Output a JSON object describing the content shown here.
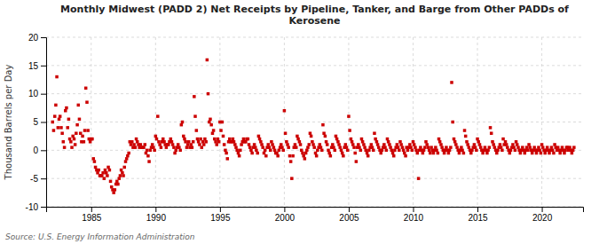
{
  "chart_data": {
    "type": "scatter",
    "title": "Monthly Midwest (PADD 2) Net Receipts by Pipeline, Tanker, and Barge from Other PADDs of\nKerosene",
    "ylabel": "Thousand Barrels per Day",
    "source": "Source: U.S. Energy Information Administration",
    "color": "#cc0000",
    "marker": "square",
    "grid": true,
    "xlim": [
      1981.5,
      2023.2
    ],
    "xticks": [
      1985,
      1990,
      1995,
      2000,
      2005,
      2010,
      2015,
      2020
    ],
    "ylim": [
      -10,
      20
    ],
    "yticks": [
      -10,
      -5,
      0,
      5,
      10,
      15,
      20
    ],
    "x": [
      1982.0,
      1982.08,
      1982.17,
      1982.25,
      1982.33,
      1982.42,
      1982.5,
      1982.58,
      1982.67,
      1982.75,
      1982.83,
      1982.92,
      1983.0,
      1983.08,
      1983.17,
      1983.25,
      1983.33,
      1983.42,
      1983.5,
      1983.58,
      1983.67,
      1983.75,
      1983.83,
      1983.92,
      1984.0,
      1984.08,
      1984.17,
      1984.25,
      1984.33,
      1984.42,
      1984.5,
      1984.58,
      1984.67,
      1984.75,
      1984.83,
      1984.92,
      1985.0,
      1985.08,
      1985.17,
      1985.25,
      1985.33,
      1985.42,
      1985.5,
      1985.58,
      1985.67,
      1985.75,
      1985.83,
      1985.92,
      1986.0,
      1986.08,
      1986.17,
      1986.25,
      1986.33,
      1986.42,
      1986.5,
      1986.58,
      1986.67,
      1986.75,
      1986.83,
      1986.92,
      1987.0,
      1987.08,
      1987.17,
      1987.25,
      1987.33,
      1987.42,
      1987.5,
      1987.58,
      1987.67,
      1987.75,
      1987.83,
      1987.92,
      1988.0,
      1988.08,
      1988.17,
      1988.25,
      1988.33,
      1988.42,
      1988.5,
      1988.58,
      1988.67,
      1988.75,
      1988.83,
      1988.92,
      1989.0,
      1989.08,
      1989.17,
      1989.25,
      1989.33,
      1989.42,
      1989.5,
      1989.58,
      1989.67,
      1989.75,
      1989.83,
      1989.92,
      1990.0,
      1990.08,
      1990.17,
      1990.25,
      1990.33,
      1990.42,
      1990.5,
      1990.58,
      1990.67,
      1990.75,
      1990.83,
      1990.92,
      1991.0,
      1991.08,
      1991.17,
      1991.25,
      1991.33,
      1991.42,
      1991.5,
      1991.58,
      1991.67,
      1991.75,
      1991.83,
      1991.92,
      1992.0,
      1992.08,
      1992.17,
      1992.25,
      1992.33,
      1992.42,
      1992.5,
      1992.58,
      1992.67,
      1992.75,
      1992.83,
      1992.92,
      1993.0,
      1993.08,
      1993.17,
      1993.25,
      1993.33,
      1993.42,
      1993.5,
      1993.58,
      1993.67,
      1993.75,
      1993.83,
      1993.92,
      1994.0,
      1994.08,
      1994.17,
      1994.25,
      1994.33,
      1994.42,
      1994.5,
      1994.58,
      1994.67,
      1994.75,
      1994.83,
      1994.92,
      1995.0,
      1995.08,
      1995.17,
      1995.25,
      1995.33,
      1995.42,
      1995.5,
      1995.58,
      1995.67,
      1995.75,
      1995.83,
      1995.92,
      1996.0,
      1996.08,
      1996.17,
      1996.25,
      1996.33,
      1996.42,
      1996.5,
      1996.58,
      1996.67,
      1996.75,
      1996.83,
      1996.92,
      1997.0,
      1997.08,
      1997.17,
      1997.25,
      1997.33,
      1997.42,
      1997.5,
      1997.58,
      1997.67,
      1997.75,
      1997.83,
      1997.92,
      1998.0,
      1998.08,
      1998.17,
      1998.25,
      1998.33,
      1998.42,
      1998.5,
      1998.58,
      1998.67,
      1998.75,
      1998.83,
      1998.92,
      1999.0,
      1999.08,
      1999.17,
      1999.25,
      1999.33,
      1999.42,
      1999.5,
      1999.58,
      1999.67,
      1999.75,
      1999.83,
      1999.92,
      2000.0,
      2000.08,
      2000.17,
      2000.25,
      2000.33,
      2000.42,
      2000.5,
      2000.58,
      2000.67,
      2000.75,
      2000.83,
      2000.92,
      2001.0,
      2001.08,
      2001.17,
      2001.25,
      2001.33,
      2001.42,
      2001.5,
      2001.58,
      2001.67,
      2001.75,
      2001.83,
      2001.92,
      2002.0,
      2002.08,
      2002.17,
      2002.25,
      2002.33,
      2002.42,
      2002.5,
      2002.58,
      2002.67,
      2002.75,
      2002.83,
      2002.92,
      2003.0,
      2003.08,
      2003.17,
      2003.25,
      2003.33,
      2003.42,
      2003.5,
      2003.58,
      2003.67,
      2003.75,
      2003.83,
      2003.92,
      2004.0,
      2004.08,
      2004.17,
      2004.25,
      2004.33,
      2004.42,
      2004.5,
      2004.58,
      2004.67,
      2004.75,
      2004.83,
      2004.92,
      2005.0,
      2005.08,
      2005.17,
      2005.25,
      2005.33,
      2005.42,
      2005.5,
      2005.58,
      2005.67,
      2005.75,
      2005.83,
      2005.92,
      2006.0,
      2006.08,
      2006.17,
      2006.25,
      2006.33,
      2006.42,
      2006.5,
      2006.58,
      2006.67,
      2006.75,
      2006.83,
      2006.92,
      2007.0,
      2007.08,
      2007.17,
      2007.25,
      2007.33,
      2007.42,
      2007.5,
      2007.58,
      2007.67,
      2007.75,
      2007.83,
      2007.92,
      2008.0,
      2008.08,
      2008.17,
      2008.25,
      2008.33,
      2008.42,
      2008.5,
      2008.58,
      2008.67,
      2008.75,
      2008.83,
      2008.92,
      2009.0,
      2009.08,
      2009.17,
      2009.25,
      2009.33,
      2009.42,
      2009.5,
      2009.58,
      2009.67,
      2009.75,
      2009.83,
      2009.92,
      2010.0,
      2010.08,
      2010.17,
      2010.25,
      2010.33,
      2010.42,
      2010.5,
      2010.58,
      2010.67,
      2010.75,
      2010.83,
      2010.92,
      2011.0,
      2011.08,
      2011.17,
      2011.25,
      2011.33,
      2011.42,
      2011.5,
      2011.58,
      2011.67,
      2011.75,
      2011.83,
      2011.92,
      2012.0,
      2012.08,
      2012.17,
      2012.25,
      2012.33,
      2012.42,
      2012.5,
      2012.58,
      2012.67,
      2012.75,
      2012.83,
      2012.92,
      2013.0,
      2013.08,
      2013.17,
      2013.25,
      2013.33,
      2013.42,
      2013.5,
      2013.58,
      2013.67,
      2013.75,
      2013.83,
      2013.92,
      2014.0,
      2014.08,
      2014.17,
      2014.25,
      2014.33,
      2014.42,
      2014.5,
      2014.58,
      2014.67,
      2014.75,
      2014.83,
      2014.92,
      2015.0,
      2015.08,
      2015.17,
      2015.25,
      2015.33,
      2015.42,
      2015.5,
      2015.58,
      2015.67,
      2015.75,
      2015.83,
      2015.92,
      2016.0,
      2016.08,
      2016.17,
      2016.25,
      2016.33,
      2016.42,
      2016.5,
      2016.58,
      2016.67,
      2016.75,
      2016.83,
      2016.92,
      2017.0,
      2017.08,
      2017.17,
      2017.25,
      2017.33,
      2017.42,
      2017.5,
      2017.58,
      2017.67,
      2017.75,
      2017.83,
      2017.92,
      2018.0,
      2018.08,
      2018.17,
      2018.25,
      2018.33,
      2018.42,
      2018.5,
      2018.58,
      2018.67,
      2018.75,
      2018.83,
      2018.92,
      2019.0,
      2019.08,
      2019.17,
      2019.25,
      2019.33,
      2019.42,
      2019.5,
      2019.58,
      2019.67,
      2019.75,
      2019.83,
      2019.92,
      2020.0,
      2020.08,
      2020.17,
      2020.25,
      2020.33,
      2020.42,
      2020.5,
      2020.58,
      2020.67,
      2020.75,
      2020.83,
      2020.92,
      2021.0,
      2021.08,
      2021.17,
      2021.25,
      2021.33,
      2021.42,
      2021.5,
      2021.58,
      2021.67,
      2021.75,
      2021.83,
      2021.92,
      2022.0,
      2022.08,
      2022.17,
      2022.25,
      2022.33,
      2022.42,
      2022.5
    ],
    "values": [
      5.0,
      3.5,
      6.0,
      8.0,
      13.0,
      4.0,
      5.5,
      6.0,
      4.0,
      3.0,
      1.5,
      0.5,
      7.0,
      7.5,
      4.0,
      5.5,
      2.0,
      1.5,
      0.5,
      2.5,
      2.0,
      1.0,
      3.0,
      4.5,
      8.0,
      5.5,
      3.0,
      1.5,
      2.5,
      1.5,
      3.5,
      11.0,
      8.5,
      3.5,
      2.0,
      1.5,
      2.0,
      2.0,
      -1.5,
      -2.0,
      -3.0,
      -3.5,
      -4.0,
      -3.5,
      -4.5,
      -4.5,
      -4.5,
      -4.0,
      -5.0,
      -3.5,
      -4.0,
      -4.5,
      -3.0,
      -3.5,
      -5.5,
      -6.5,
      -7.0,
      -7.5,
      -7.0,
      -6.0,
      -5.5,
      -6.0,
      -5.0,
      -4.5,
      -3.5,
      -4.0,
      -4.5,
      -3.0,
      -2.0,
      -1.5,
      -1.0,
      -0.5,
      1.5,
      1.0,
      1.5,
      0.5,
      1.0,
      0.5,
      2.0,
      1.5,
      1.0,
      0.5,
      1.0,
      0.5,
      0.5,
      0.5,
      1.0,
      -0.5,
      0.0,
      -1.0,
      -2.0,
      0.0,
      0.5,
      1.0,
      0.5,
      0.0,
      2.5,
      2.0,
      6.0,
      1.5,
      1.0,
      0.5,
      1.5,
      2.0,
      1.5,
      1.0,
      0.5,
      1.0,
      1.0,
      1.5,
      2.0,
      1.5,
      1.0,
      0.5,
      -0.5,
      0.0,
      0.5,
      1.0,
      0.5,
      0.0,
      4.5,
      5.0,
      2.5,
      2.0,
      1.5,
      0.5,
      1.0,
      1.5,
      0.5,
      1.0,
      0.5,
      1.5,
      9.5,
      6.0,
      3.5,
      2.0,
      1.5,
      1.0,
      2.0,
      0.5,
      1.5,
      1.0,
      2.0,
      1.5,
      16.0,
      10.0,
      5.0,
      5.5,
      4.5,
      3.0,
      3.5,
      2.0,
      1.5,
      1.0,
      2.0,
      1.5,
      5.0,
      3.5,
      5.0,
      2.5,
      1.0,
      0.0,
      -0.5,
      -1.5,
      1.5,
      2.0,
      1.5,
      1.5,
      2.0,
      1.5,
      1.0,
      0.5,
      0.0,
      -0.5,
      -1.0,
      0.0,
      1.0,
      1.5,
      2.0,
      1.5,
      1.5,
      2.0,
      2.0,
      1.0,
      0.5,
      0.0,
      -0.5,
      0.5,
      1.0,
      0.5,
      0.0,
      -0.5,
      2.5,
      2.0,
      1.5,
      1.0,
      0.5,
      -0.5,
      0.0,
      -1.0,
      0.5,
      1.0,
      0.5,
      0.0,
      1.5,
      1.0,
      0.5,
      0.0,
      -0.5,
      -0.5,
      -1.0,
      0.0,
      0.5,
      1.0,
      0.5,
      0.0,
      7.0,
      3.0,
      1.5,
      1.0,
      0.5,
      -1.0,
      -2.0,
      -5.0,
      -1.0,
      0.5,
      1.0,
      0.5,
      2.5,
      2.0,
      1.5,
      1.0,
      0.0,
      -0.5,
      -1.0,
      -1.5,
      -0.5,
      0.0,
      0.5,
      1.0,
      3.0,
      2.5,
      1.5,
      1.0,
      0.5,
      -0.5,
      -1.0,
      0.0,
      0.5,
      1.0,
      0.5,
      0.0,
      4.5,
      3.0,
      2.5,
      1.5,
      1.0,
      0.0,
      -0.5,
      -1.0,
      0.5,
      1.0,
      0.5,
      0.0,
      2.5,
      2.0,
      1.5,
      1.0,
      0.5,
      0.0,
      -0.5,
      -1.0,
      0.5,
      1.0,
      0.5,
      0.0,
      6.0,
      3.5,
      2.0,
      1.5,
      1.0,
      0.5,
      -0.5,
      -2.0,
      0.5,
      1.0,
      0.5,
      0.0,
      2.0,
      1.5,
      1.0,
      0.5,
      0.0,
      -0.5,
      -1.0,
      0.0,
      0.5,
      1.0,
      0.5,
      0.0,
      3.0,
      2.0,
      1.5,
      1.0,
      0.5,
      0.0,
      -0.5,
      0.0,
      0.5,
      1.0,
      0.5,
      0.0,
      2.0,
      1.5,
      1.0,
      0.5,
      0.0,
      -0.5,
      -1.0,
      0.0,
      0.5,
      1.0,
      0.5,
      0.0,
      1.5,
      1.0,
      0.5,
      0.0,
      -0.5,
      -1.0,
      0.5,
      0.0,
      0.5,
      1.0,
      0.5,
      0.0,
      1.5,
      1.0,
      0.5,
      0.0,
      -0.5,
      -5.0,
      0.0,
      0.5,
      0.0,
      -0.5,
      0.0,
      0.5,
      1.5,
      1.0,
      0.5,
      0.0,
      -0.5,
      0.5,
      0.0,
      -0.5,
      0.0,
      0.5,
      0.0,
      -0.5,
      2.0,
      1.5,
      1.0,
      0.5,
      0.0,
      -0.5,
      0.0,
      0.5,
      0.0,
      -0.5,
      0.0,
      0.5,
      12.0,
      5.0,
      2.0,
      1.5,
      1.0,
      0.5,
      0.0,
      -0.5,
      0.0,
      0.5,
      0.0,
      -0.5,
      3.5,
      2.5,
      1.5,
      1.0,
      0.5,
      0.0,
      -0.5,
      0.0,
      0.5,
      1.0,
      0.5,
      0.0,
      2.0,
      1.5,
      1.0,
      0.5,
      0.0,
      -0.5,
      0.0,
      0.5,
      0.0,
      -0.5,
      0.0,
      0.5,
      4.0,
      3.0,
      1.5,
      1.0,
      0.5,
      0.0,
      -0.5,
      0.0,
      0.5,
      1.0,
      0.5,
      0.0,
      2.0,
      1.0,
      1.5,
      1.0,
      0.5,
      0.0,
      -0.5,
      0.0,
      0.5,
      1.0,
      0.5,
      0.0,
      1.5,
      1.0,
      0.5,
      0.0,
      -0.5,
      0.0,
      0.5,
      0.0,
      -0.5,
      0.0,
      0.5,
      0.0,
      1.0,
      0.5,
      0.0,
      -0.5,
      0.0,
      0.5,
      0.0,
      -0.5,
      0.0,
      0.5,
      0.0,
      -0.5,
      1.0,
      0.5,
      0.0,
      -0.5,
      0.0,
      0.5,
      0.0,
      -0.5,
      0.0,
      0.5,
      0.0,
      -0.5,
      1.0,
      0.5,
      0.0,
      0.5,
      0.0,
      -0.5,
      0.0,
      0.5,
      0.0,
      -0.5,
      0.0,
      0.5,
      0.5,
      0.0,
      0.5,
      0.0,
      -0.5,
      0.0,
      0.5
    ]
  }
}
